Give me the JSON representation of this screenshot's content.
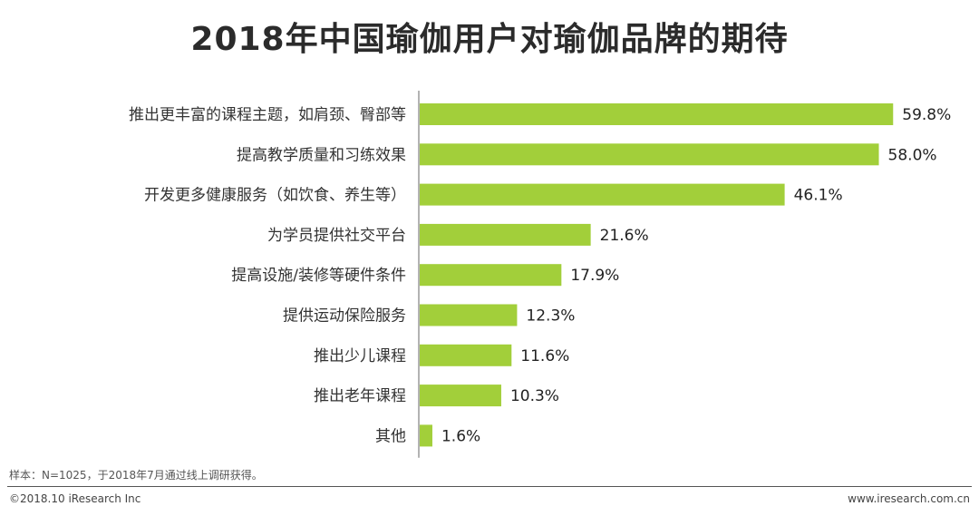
{
  "title": "2018年中国瑜伽用户对瑜伽品牌的期待",
  "footnote": "样本：N=1025，于2018年7月通过线上调研获得。",
  "copyright": "©2018.10 iResearch Inc",
  "website": "www.iresearch.com.cn",
  "colors": {
    "bar": "#a2cf3a",
    "axis": "#9a9a9a"
  },
  "chart_data": {
    "type": "bar",
    "orientation": "horizontal",
    "categories": [
      "推出更丰富的课程主题，如肩颈、臀部等",
      "提高教学质量和习练效果",
      "开发更多健康服务（如饮食、养生等）",
      "为学员提供社交平台",
      "提高设施/装修等硬件条件",
      "提供运动保险服务",
      "推出少儿课程",
      "推出老年课程",
      "其他"
    ],
    "values": [
      59.8,
      58.0,
      46.1,
      21.6,
      17.9,
      12.3,
      11.6,
      10.3,
      1.6
    ],
    "value_labels": [
      "59.8%",
      "58.0%",
      "46.1%",
      "21.6%",
      "17.9%",
      "12.3%",
      "11.6%",
      "10.3%",
      "1.6%"
    ],
    "xlim": [
      0,
      60
    ],
    "grid": false,
    "legend": "none"
  }
}
